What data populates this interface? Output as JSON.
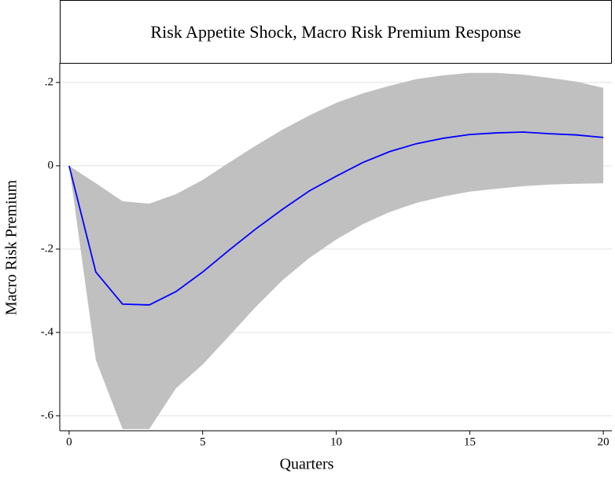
{
  "chart_data": {
    "type": "band-line",
    "title": "Risk Appetite Shock, Macro Risk Premium Response",
    "x_label": "Quarters",
    "y_label": "Macro Risk Premium",
    "x": [
      0,
      1,
      2,
      3,
      4,
      5,
      6,
      7,
      8,
      9,
      10,
      11,
      12,
      13,
      14,
      15,
      16,
      17,
      18,
      19,
      20
    ],
    "line": {
      "color": "#0000ff",
      "values": [
        0,
        -0.255,
        -0.332,
        -0.334,
        -0.302,
        -0.255,
        -0.202,
        -0.151,
        -0.104,
        -0.06,
        -0.025,
        0.008,
        0.034,
        0.053,
        0.066,
        0.075,
        0.079,
        0.081,
        0.077,
        0.074,
        0.068
      ]
    },
    "band": {
      "color": "#c0c0c0",
      "upper": [
        0,
        -0.042,
        -0.085,
        -0.091,
        -0.068,
        -0.034,
        0.008,
        0.049,
        0.087,
        0.121,
        0.151,
        0.174,
        0.192,
        0.208,
        0.217,
        0.223,
        0.223,
        0.219,
        0.211,
        0.202,
        0.187
      ],
      "lower": [
        0,
        -0.466,
        -0.632,
        -0.632,
        -0.534,
        -0.477,
        -0.408,
        -0.338,
        -0.274,
        -0.221,
        -0.177,
        -0.14,
        -0.111,
        -0.089,
        -0.074,
        -0.062,
        -0.055,
        -0.049,
        -0.045,
        -0.043,
        -0.042
      ]
    },
    "xlim": [
      -0.35,
      20.32
    ],
    "ylim": [
      -0.636,
      0.247
    ],
    "xticks": [
      0,
      5,
      10,
      15,
      20
    ],
    "yticks": [
      {
        "value": -0.6,
        "label": "-.6"
      },
      {
        "value": -0.4,
        "label": "-.4"
      },
      {
        "value": -0.2,
        "label": "-.2"
      },
      0,
      {
        "value": 0.2,
        "label": ".2"
      }
    ],
    "grid": true
  }
}
